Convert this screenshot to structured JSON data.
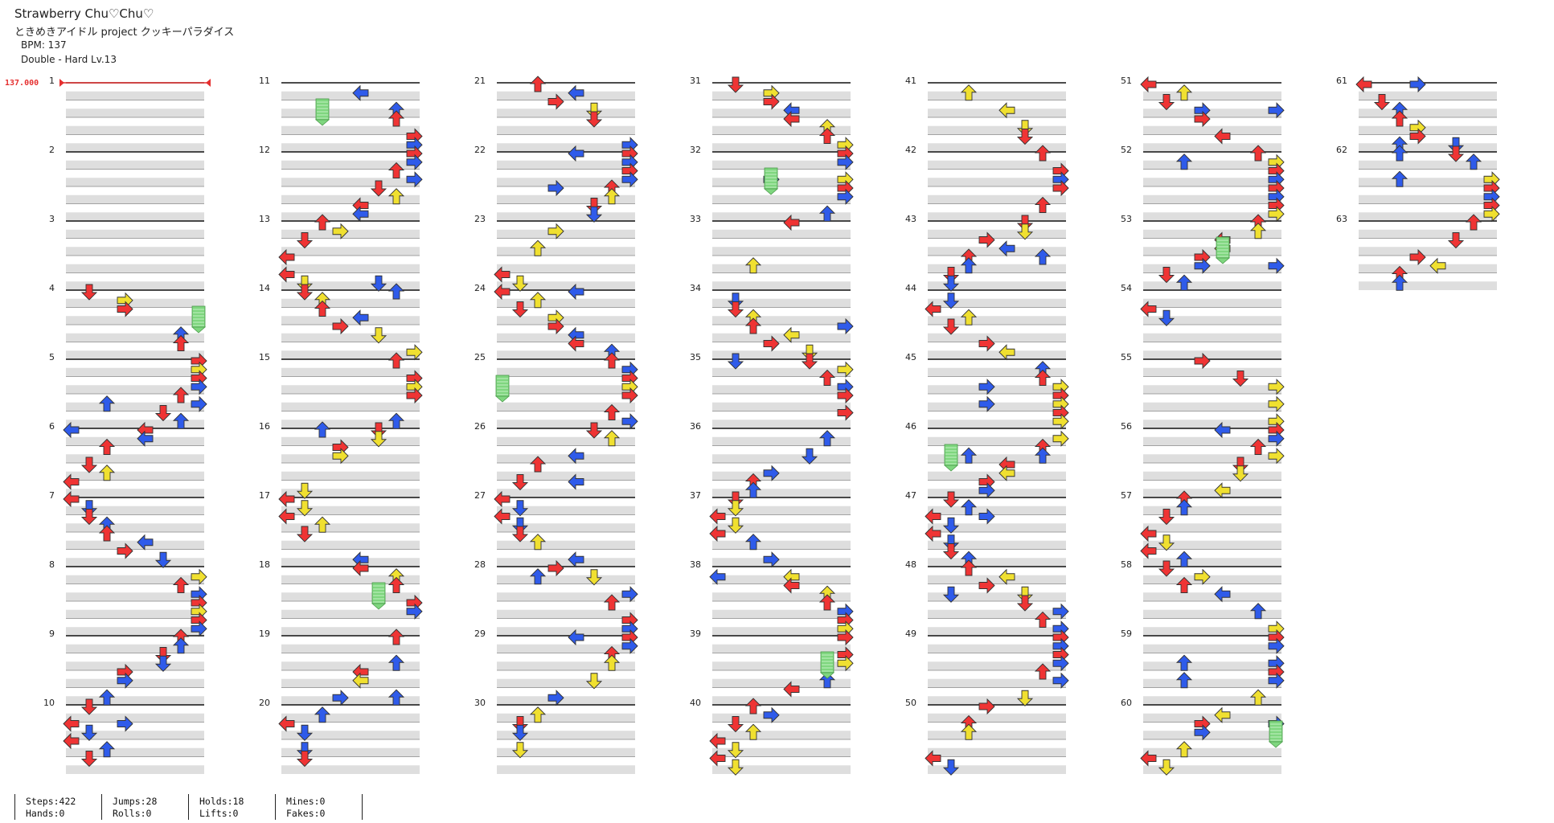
{
  "header": {
    "title": "Strawberry Chu♡Chu♡",
    "artist": "ときめきアイドル project クッキーパラダイス",
    "bpm_label": "BPM: 137",
    "difficulty": "Double - Hard  Lv.13"
  },
  "bpm_marker": "137.000",
  "arrow_colors": {
    "quarter": "#ef3434",
    "eighth": "#2f5bea",
    "sixteenth": "#f0e030",
    "hold": "#7fd67f"
  },
  "measure_count": 63,
  "stats": {
    "col1": [
      "Steps:422",
      "Hands:0"
    ],
    "col2": [
      "Jumps:28",
      "Rolls:0"
    ],
    "col3": [
      "Holds:18",
      "Lifts:0"
    ],
    "col4": [
      "Mines:0",
      "Fakes:0"
    ]
  }
}
